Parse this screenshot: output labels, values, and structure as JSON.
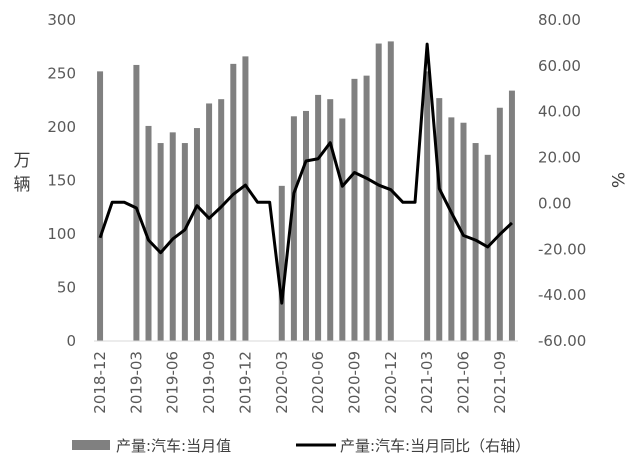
{
  "chart_data": {
    "type": "bar+line",
    "categories": [
      "2018-12",
      "2019-01",
      "2019-02",
      "2019-03",
      "2019-04",
      "2019-05",
      "2019-06",
      "2019-07",
      "2019-08",
      "2019-09",
      "2019-10",
      "2019-11",
      "2019-12",
      "2020-01",
      "2020-02",
      "2020-03",
      "2020-04",
      "2020-05",
      "2020-06",
      "2020-07",
      "2020-08",
      "2020-09",
      "2020-10",
      "2020-11",
      "2020-12",
      "2021-01",
      "2021-02",
      "2021-03",
      "2021-04",
      "2021-05",
      "2021-06",
      "2021-07",
      "2021-08",
      "2021-09",
      "2021-10"
    ],
    "x_tick_labels": [
      "2018-12",
      "2019-03",
      "2019-06",
      "2019-09",
      "2019-12",
      "2020-03",
      "2020-06",
      "2020-09",
      "2020-12",
      "2021-03",
      "2021-06",
      "2021-09"
    ],
    "series": [
      {
        "name": "产量:汽车:当月值",
        "type": "bar",
        "axis": "left",
        "color": "#808080",
        "values": [
          252,
          null,
          null,
          258,
          201,
          185,
          195,
          185,
          199,
          222,
          226,
          259,
          266,
          null,
          null,
          145,
          210,
          215,
          230,
          226,
          208,
          245,
          248,
          278,
          280,
          null,
          null,
          252,
          227,
          209,
          204,
          185,
          174,
          218,
          234
        ]
      },
      {
        "name": "产量:汽车:当月同比（右轴）",
        "type": "line",
        "axis": "right",
        "color": "#000000",
        "values": [
          -15.0,
          0.5,
          0.5,
          -2.0,
          -16.0,
          -21.5,
          -15.5,
          -11.5,
          -1.0,
          -6.5,
          -1.5,
          4.0,
          8.0,
          0.5,
          0.5,
          -43.5,
          4.5,
          18.5,
          19.5,
          26.5,
          7.5,
          13.5,
          11.0,
          8.0,
          6.0,
          0.5,
          0.5,
          69.5,
          6.5,
          -4.0,
          -14.0,
          -16.0,
          -19.0,
          -13.5,
          -8.5
        ]
      }
    ],
    "y_left": {
      "label": "万辆",
      "min": 0,
      "max": 300,
      "ticks": [
        "0",
        "50",
        "100",
        "150",
        "200",
        "250",
        "300"
      ]
    },
    "y_right": {
      "label": "%",
      "min": -60,
      "max": 80,
      "ticks": [
        "-60.00",
        "-40.00",
        "-20.00",
        "0.00",
        "20.00",
        "40.00",
        "60.00",
        "80.00"
      ]
    },
    "grid": false,
    "legend_position": "bottom"
  }
}
